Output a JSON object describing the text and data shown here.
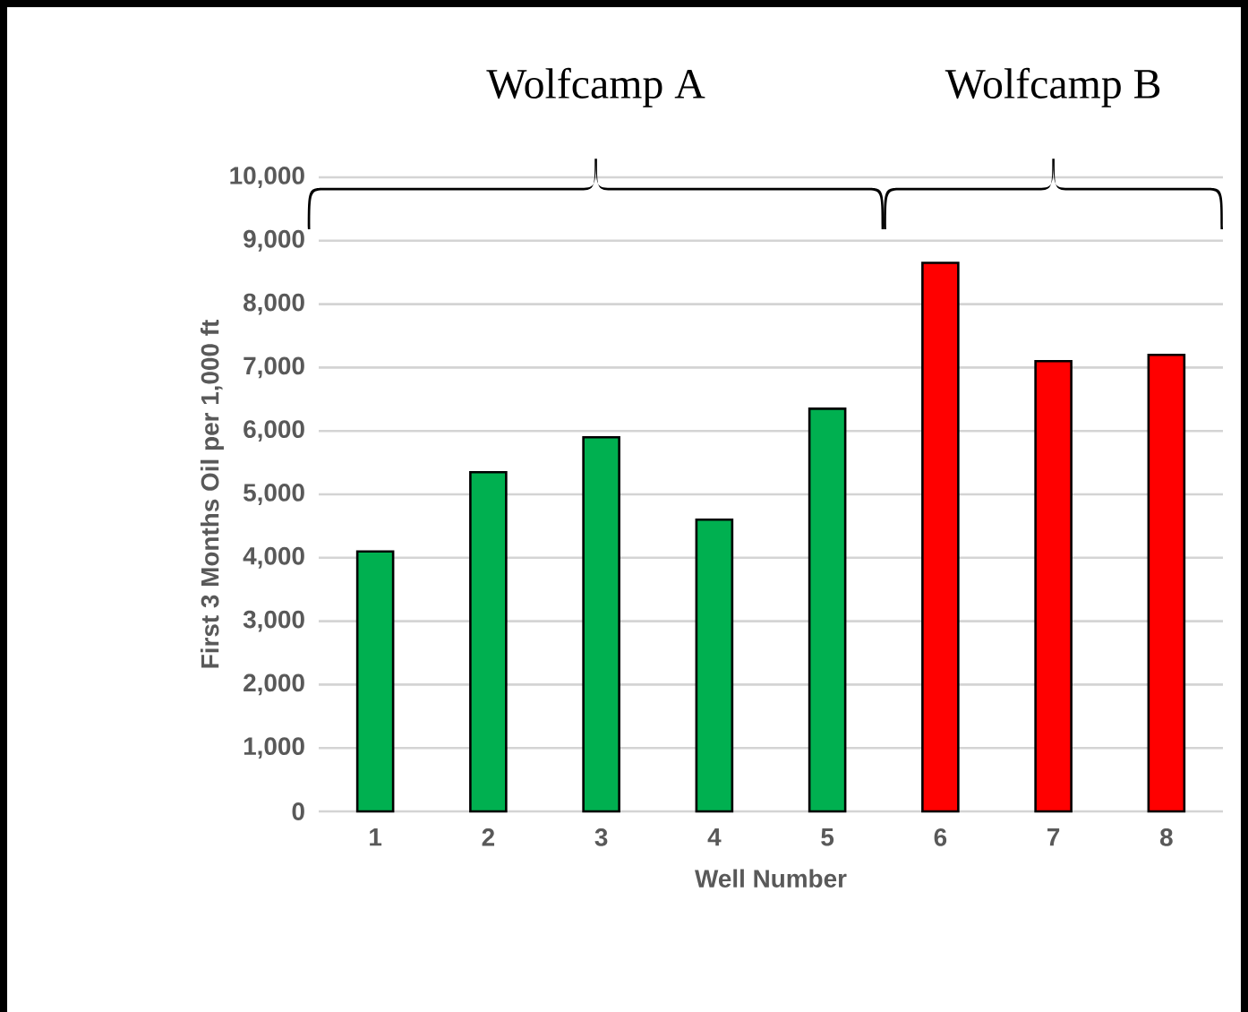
{
  "chart_data": {
    "type": "bar",
    "categories": [
      "1",
      "2",
      "3",
      "4",
      "5",
      "6",
      "7",
      "8"
    ],
    "values": [
      4100,
      5350,
      5900,
      4600,
      6350,
      8650,
      7100,
      7200
    ],
    "colors": [
      "#00b050",
      "#00b050",
      "#00b050",
      "#00b050",
      "#00b050",
      "#ff0000",
      "#ff0000",
      "#ff0000"
    ],
    "xlabel": "Well Number",
    "ylabel": "First 3 Months Oil per 1,000 ft",
    "ylim": [
      0,
      10000
    ],
    "yticks": [
      {
        "value": 0,
        "label": "0"
      },
      {
        "value": 1000,
        "label": "1,000"
      },
      {
        "value": 2000,
        "label": "2,000"
      },
      {
        "value": 3000,
        "label": "3,000"
      },
      {
        "value": 4000,
        "label": "4,000"
      },
      {
        "value": 5000,
        "label": "5,000"
      },
      {
        "value": 6000,
        "label": "6,000"
      },
      {
        "value": 7000,
        "label": "7,000"
      },
      {
        "value": 8000,
        "label": "8,000"
      },
      {
        "value": 9000,
        "label": "9,000"
      },
      {
        "value": 10000,
        "label": "10,000"
      }
    ],
    "annotations": [
      "Wolfcamp A",
      "Wolfcamp B"
    ],
    "grid": "y"
  }
}
